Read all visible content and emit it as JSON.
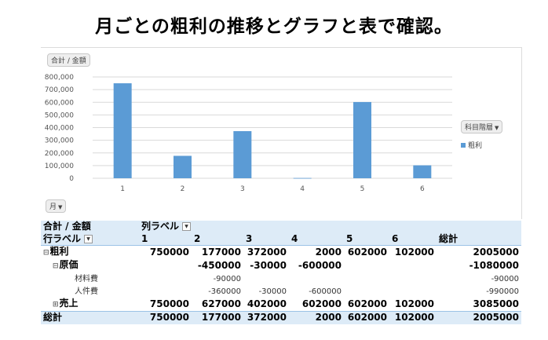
{
  "page": {
    "title": "月ごとの粗利の推移とグラフと表で確認。"
  },
  "chart": {
    "value_button": "合計 / 金額",
    "axis_button": "月",
    "legend_button": "科目階層",
    "legend_item": "粗利",
    "accent": "#5b9bd5"
  },
  "chart_data": {
    "type": "bar",
    "categories": [
      "1",
      "2",
      "3",
      "4",
      "5",
      "6"
    ],
    "series": [
      {
        "name": "粗利",
        "values": [
          750000,
          177000,
          372000,
          2000,
          602000,
          102000
        ]
      }
    ],
    "yticks": [
      "0",
      "100,000",
      "200,000",
      "300,000",
      "400,000",
      "500,000",
      "600,000",
      "700,000",
      "800,000"
    ],
    "ylim": [
      0,
      800000
    ],
    "grid": true,
    "legend": "right"
  },
  "pivot": {
    "header1": {
      "values_label": "合計 / 金額",
      "columns_label": "列ラベル"
    },
    "header2": {
      "rows_label": "行ラベル",
      "cols": [
        "1",
        "2",
        "3",
        "4",
        "5",
        "6"
      ],
      "total": "総計"
    },
    "rows": [
      {
        "label": "粗利",
        "expander": "⊟",
        "values": [
          "750000",
          "177000",
          "372000",
          "2000",
          "602000",
          "102000"
        ],
        "total": "2005000"
      },
      {
        "label": "原価",
        "expander": "⊟",
        "values": [
          "",
          "-450000",
          "-30000",
          "-600000",
          "",
          ""
        ],
        "total": "-1080000"
      },
      {
        "label": "材料費",
        "expander": "",
        "values": [
          "",
          "-90000",
          "",
          "",
          "",
          ""
        ],
        "total": "-90000"
      },
      {
        "label": "人件費",
        "expander": "",
        "values": [
          "",
          "-360000",
          "-30000",
          "-600000",
          "",
          ""
        ],
        "total": "-990000"
      },
      {
        "label": "売上",
        "expander": "⊞",
        "values": [
          "750000",
          "627000",
          "402000",
          "602000",
          "602000",
          "102000"
        ],
        "total": "3085000"
      }
    ],
    "grand_total": {
      "label": "総計",
      "values": [
        "750000",
        "177000",
        "372000",
        "2000",
        "602000",
        "102000"
      ],
      "total": "2005000"
    }
  }
}
